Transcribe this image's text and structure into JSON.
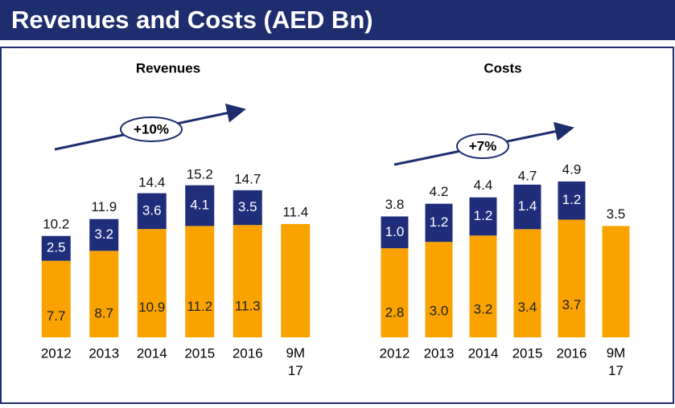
{
  "title": "Revenues and Costs (AED Bn)",
  "chart_data": [
    {
      "type": "bar",
      "stacked": true,
      "title": "Revenues",
      "annotation": "+10%",
      "categories": [
        "2012",
        "2013",
        "2014",
        "2015",
        "2016",
        "9M 17"
      ],
      "series": [
        {
          "color": "#f9a200",
          "values": [
            7.7,
            8.7,
            10.9,
            11.2,
            11.3,
            11.4
          ],
          "value_labels": [
            "7.7",
            "8.7",
            "10.9",
            "11.2",
            "11.3",
            null
          ]
        },
        {
          "color": "#1f2d7a",
          "values": [
            2.5,
            3.2,
            3.6,
            4.1,
            3.5,
            null
          ],
          "value_labels": [
            "2.5",
            "3.2",
            "3.6",
            "4.1",
            "3.5",
            null
          ]
        }
      ],
      "totals": [
        10.2,
        11.9,
        14.4,
        15.2,
        14.7,
        11.4
      ],
      "ylim": [
        0,
        16
      ]
    },
    {
      "type": "bar",
      "stacked": true,
      "title": "Costs",
      "annotation": "+7%",
      "categories": [
        "2012",
        "2013",
        "2014",
        "2015",
        "2016",
        "9M 17"
      ],
      "series": [
        {
          "color": "#f9a200",
          "values": [
            2.8,
            3.0,
            3.2,
            3.4,
            3.7,
            3.5
          ],
          "value_labels": [
            "2.8",
            "3.0",
            "3.2",
            "3.4",
            "3.7",
            null
          ]
        },
        {
          "color": "#1f2d7a",
          "values": [
            1.0,
            1.2,
            1.2,
            1.4,
            1.2,
            null
          ],
          "value_labels": [
            "1.0",
            "1.2",
            "1.2",
            "1.4",
            "1.2",
            null
          ]
        }
      ],
      "totals": [
        3.8,
        4.2,
        4.4,
        4.7,
        4.9,
        3.5
      ],
      "ylim": [
        0,
        5
      ]
    }
  ]
}
